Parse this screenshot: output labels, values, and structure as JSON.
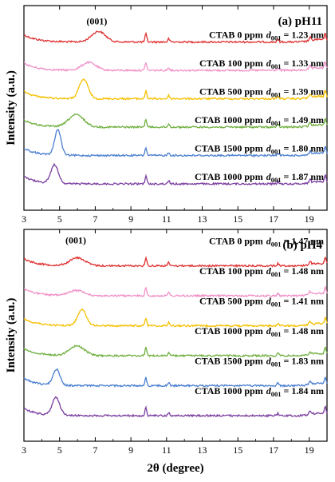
{
  "chart_data": [
    {
      "type": "line",
      "title": "(a) pH11",
      "peak_label": "(001)",
      "xlabel": "2θ (degree)",
      "ylabel": "Intensity (a.u.)",
      "xlim": [
        3,
        20
      ],
      "x_ticks": [
        3,
        5,
        7,
        9,
        11,
        13,
        15,
        17,
        19
      ],
      "y_ticks": false,
      "grid": false,
      "series": [
        {
          "name": "CTAB 0 ppm",
          "d_value": "1.23 nm",
          "color": "#e03030",
          "peak_2theta": 7.18,
          "peak_height": 0.6,
          "peak_width": 0.55,
          "offset": 5
        },
        {
          "name": "CTAB 100 ppm",
          "d_value": "1.33 nm",
          "color": "#f090c8",
          "peak_2theta": 6.64,
          "peak_height": 0.45,
          "peak_width": 0.55,
          "offset": 4
        },
        {
          "name": "CTAB 500 ppm",
          "d_value": "1.39 nm",
          "color": "#f5c000",
          "peak_2theta": 6.35,
          "peak_height": 1.1,
          "peak_width": 0.35,
          "offset": 3
        },
        {
          "name": "CTAB 1000 ppm",
          "d_value": "1.49 nm",
          "color": "#70b040",
          "peak_2theta": 5.93,
          "peak_height": 0.7,
          "peak_width": 0.6,
          "offset": 2
        },
        {
          "name": "CTAB 1500 ppm",
          "d_value": "1.80 nm",
          "color": "#4a7fd0",
          "peak_2theta": 4.9,
          "peak_height": 1.45,
          "peak_width": 0.25,
          "offset": 1
        },
        {
          "name": "CTAB 1000 ppm",
          "d_value": "1.87 nm",
          "color": "#7a3ea0",
          "peak_2theta": 4.72,
          "peak_height": 1.05,
          "peak_width": 0.3,
          "offset": 0
        }
      ]
    },
    {
      "type": "line",
      "title": "(b) pH4",
      "peak_label": "(001)",
      "xlabel": "2θ (degree)",
      "ylabel": "Intensity (a.u.)",
      "xlim": [
        3,
        20
      ],
      "x_ticks": [
        3,
        5,
        7,
        9,
        11,
        13,
        15,
        17,
        19
      ],
      "y_ticks": false,
      "grid": false,
      "series": [
        {
          "name": "CTAB 0 ppm",
          "d_value": "1.47 nm",
          "color": "#e03030",
          "peak_2theta": 6.0,
          "peak_height": 0.45,
          "peak_width": 0.6,
          "offset": 5
        },
        {
          "name": "CTAB 100 ppm",
          "d_value": "1.48 nm",
          "color": "#f090c8",
          "peak_2theta": 5.97,
          "peak_height": 0.3,
          "peak_width": 0.6,
          "offset": 4
        },
        {
          "name": "CTAB 500 ppm",
          "d_value": "1.41 nm",
          "color": "#f5c000",
          "peak_2theta": 6.26,
          "peak_height": 0.9,
          "peak_width": 0.35,
          "offset": 3
        },
        {
          "name": "CTAB 1000 ppm",
          "d_value": "1.48 nm",
          "color": "#70b040",
          "peak_2theta": 5.97,
          "peak_height": 0.55,
          "peak_width": 0.6,
          "offset": 2
        },
        {
          "name": "CTAB 1500 ppm",
          "d_value": "1.83 nm",
          "color": "#4a7fd0",
          "peak_2theta": 4.82,
          "peak_height": 0.9,
          "peak_width": 0.28,
          "offset": 1
        },
        {
          "name": "CTAB 1000 ppm",
          "d_value": "1.84 nm",
          "color": "#7a3ea0",
          "peak_2theta": 4.8,
          "peak_height": 1.0,
          "peak_width": 0.3,
          "offset": 0
        }
      ]
    }
  ]
}
